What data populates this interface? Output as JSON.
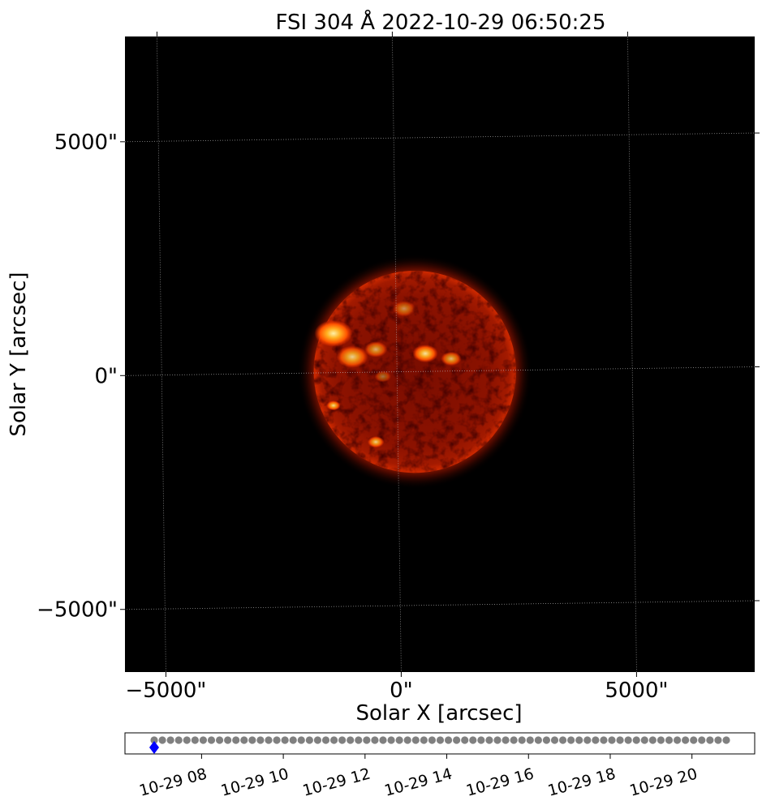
{
  "chart_data": [
    {
      "type": "image",
      "title": "FSI 304 Å 2022-10-29 06:50:25",
      "xlabel": "Solar X [arcsec]",
      "ylabel": "Solar Y [arcsec]",
      "xlim": [
        -5780,
        7600
      ],
      "ylim": [
        -6420,
        7170
      ],
      "x_ticks": [
        {
          "value": -5000,
          "label": "−5000\""
        },
        {
          "value": 0,
          "label": "0\""
        },
        {
          "value": 5000,
          "label": "5000\""
        }
      ],
      "y_ticks": [
        {
          "value": 5000,
          "label": "5000\""
        },
        {
          "value": 0,
          "label": "0\""
        },
        {
          "value": -5000,
          "label": "−5000\""
        }
      ],
      "grid": true,
      "grid_tilt_deg": 0.8,
      "colormap": "solar orbiter fsi 304 (black-red-orange-yellow)",
      "sun": {
        "center": [
          380,
          0
        ],
        "radius": 2150
      },
      "bright_regions": [
        {
          "x": -1350,
          "y": 820,
          "r": 300,
          "intensity": 1.0
        },
        {
          "x": -950,
          "y": 320,
          "r": 250,
          "intensity": 0.85
        },
        {
          "x": -450,
          "y": 480,
          "r": 180,
          "intensity": 0.7
        },
        {
          "x": 600,
          "y": 390,
          "r": 200,
          "intensity": 0.95
        },
        {
          "x": 1150,
          "y": 280,
          "r": 160,
          "intensity": 0.75
        },
        {
          "x": -1350,
          "y": -720,
          "r": 110,
          "intensity": 0.9
        },
        {
          "x": -450,
          "y": -1500,
          "r": 130,
          "intensity": 0.85
        },
        {
          "x": 150,
          "y": 1350,
          "r": 180,
          "intensity": 0.55
        },
        {
          "x": -300,
          "y": -100,
          "r": 130,
          "intensity": 0.45
        }
      ]
    },
    {
      "type": "scatter",
      "x_start": "2022-10-29 06:50:25",
      "x_end": "2022-10-29 20:50",
      "points": 71,
      "point_interval_minutes": 12,
      "point_color": "#808080",
      "current_index": 0,
      "current_color": "#0000ff",
      "current_marker": "diamond",
      "x_ticks": [
        "10-29 08",
        "10-29 10",
        "10-29 12",
        "10-29 14",
        "10-29 16",
        "10-29 18",
        "10-29 20"
      ],
      "tick_rotation_deg": -15
    }
  ]
}
